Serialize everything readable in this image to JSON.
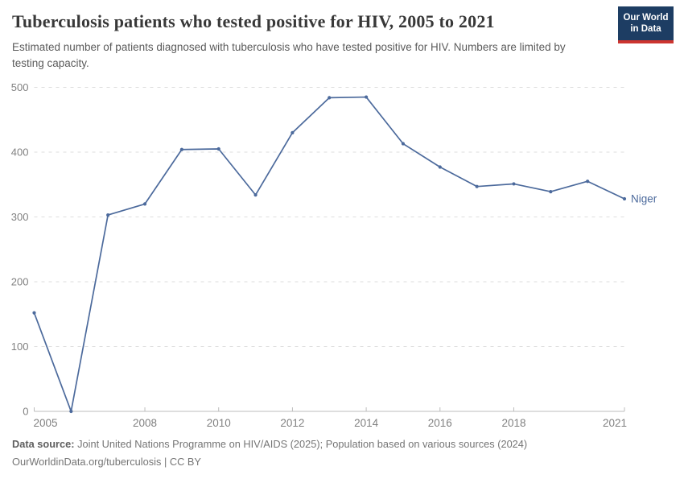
{
  "header": {
    "title": "Tuberculosis patients who tested positive for HIV, 2005 to 2021",
    "subtitle": "Estimated number of patients diagnosed with tuberculosis who have tested positive for HIV. Numbers are limited by testing capacity.",
    "logo": {
      "line1": "Our World",
      "line2": "in Data"
    }
  },
  "chart_data": {
    "type": "line",
    "title": "Tuberculosis patients who tested positive for HIV, 2005 to 2021",
    "x": [
      2005,
      2006,
      2007,
      2008,
      2009,
      2010,
      2011,
      2012,
      2013,
      2014,
      2015,
      2016,
      2017,
      2018,
      2019,
      2020,
      2021
    ],
    "series": [
      {
        "name": "Niger",
        "color": "#4c6a9c",
        "values": [
          152,
          0,
          303,
          320,
          404,
          405,
          334,
          430,
          484,
          485,
          413,
          377,
          347,
          351,
          339,
          355,
          328
        ]
      }
    ],
    "xlabel": "",
    "ylabel": "",
    "xlim": [
      2005,
      2021
    ],
    "ylim": [
      0,
      500
    ],
    "x_ticks": [
      2005,
      2008,
      2010,
      2012,
      2014,
      2016,
      2018,
      2021
    ],
    "y_ticks": [
      0,
      100,
      200,
      300,
      400,
      500
    ],
    "grid": "horizontal-dashed",
    "legend_position": "end-of-line-label",
    "end_label": "Niger"
  },
  "footer": {
    "source_label": "Data source:",
    "source_text": "Joint United Nations Programme on HIV/AIDS (2025); Population based on various sources (2024)",
    "link_text": "OurWorldinData.org/tuberculosis",
    "separator": "|",
    "license_text": "CC BY"
  },
  "colors": {
    "line": "#4c6a9c",
    "grid": "#dedede",
    "axis": "#bcbcbc",
    "tick_label": "#818181",
    "title": "#383838",
    "subtitle": "#5b5b5b",
    "footer": "#757575",
    "logo_bg": "#1d3d63",
    "logo_accent": "#cc342f"
  }
}
